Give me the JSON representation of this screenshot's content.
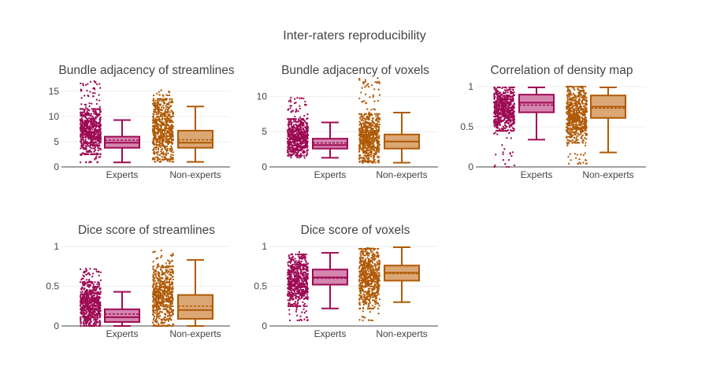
{
  "figure_title": "Inter-raters reproducibility",
  "colors": {
    "experts_dark": "#9e0a55",
    "experts_fill": "#d486ae",
    "nonexperts_dark": "#b05a06",
    "nonexperts_fill": "#dba775",
    "grid": "#eeeeee",
    "axis": "#444444"
  },
  "chart_data": [
    {
      "type": "box",
      "title": "Bundle adjacency of streamlines",
      "categories": [
        "Experts",
        "Non-experts"
      ],
      "ylim": [
        0,
        17.5
      ],
      "yticks": [
        0,
        5,
        10,
        15
      ],
      "boxes": [
        {
          "name": "Experts",
          "min": 0.9,
          "q1": 3.8,
          "median": 4.8,
          "mean": 5.3,
          "q3": 6.0,
          "max": 9.3
        },
        {
          "name": "Non-experts",
          "min": 1.0,
          "q1": 3.8,
          "median": 4.8,
          "mean": 5.4,
          "q3": 7.2,
          "max": 12.0
        }
      ],
      "points": [
        {
          "name": "Experts",
          "min": 0.9,
          "max": 17.0,
          "dense_low": 2.5,
          "dense_high": 11.5
        },
        {
          "name": "Non-experts",
          "min": 1.0,
          "max": 15.2,
          "dense_low": 1.5,
          "dense_high": 13.5
        }
      ]
    },
    {
      "type": "box",
      "title": "Bundle adjacency of voxels",
      "categories": [
        "Experts",
        "Non-experts"
      ],
      "ylim": [
        0,
        12.5
      ],
      "yticks": [
        0,
        5,
        10
      ],
      "boxes": [
        {
          "name": "Experts",
          "min": 1.3,
          "q1": 2.6,
          "median": 3.1,
          "mean": 3.4,
          "q3": 4.0,
          "max": 6.3
        },
        {
          "name": "Non-experts",
          "min": 0.6,
          "q1": 2.6,
          "median": 3.6,
          "mean": 3.6,
          "q3": 4.6,
          "max": 7.7
        }
      ],
      "points": [
        {
          "name": "Experts",
          "min": 1.3,
          "max": 9.8,
          "dense_low": 1.6,
          "dense_high": 6.8
        },
        {
          "name": "Non-experts",
          "min": 0.6,
          "max": 12.6,
          "dense_low": 0.8,
          "dense_high": 7.5
        }
      ]
    },
    {
      "type": "box",
      "title": "Correlation of density map",
      "categories": [
        "Experts",
        "Non-experts"
      ],
      "ylim": [
        0,
        1.0
      ],
      "yticks": [
        0,
        0.5,
        1
      ],
      "boxes": [
        {
          "name": "Experts",
          "min": 0.34,
          "q1": 0.68,
          "median": 0.8,
          "mean": 0.77,
          "q3": 0.9,
          "max": 0.99
        },
        {
          "name": "Non-experts",
          "min": 0.18,
          "q1": 0.61,
          "median": 0.75,
          "mean": 0.73,
          "q3": 0.89,
          "max": 0.99
        }
      ],
      "points": [
        {
          "name": "Experts",
          "min": 0.0,
          "max": 0.99,
          "dense_low": 0.45,
          "dense_high": 0.99
        },
        {
          "name": "Non-experts",
          "min": 0.04,
          "max": 1.0,
          "dense_low": 0.3,
          "dense_high": 1.0
        }
      ]
    },
    {
      "type": "box",
      "title": "Dice score of streamlines",
      "categories": [
        "Experts",
        "Non-experts"
      ],
      "ylim": [
        0,
        1.0
      ],
      "yticks": [
        0,
        0.5,
        1
      ],
      "boxes": [
        {
          "name": "Experts",
          "min": 0.0,
          "q1": 0.05,
          "median": 0.11,
          "mean": 0.15,
          "q3": 0.21,
          "max": 0.43
        },
        {
          "name": "Non-experts",
          "min": 0.0,
          "q1": 0.09,
          "median": 0.2,
          "mean": 0.25,
          "q3": 0.39,
          "max": 0.83
        }
      ],
      "points": [
        {
          "name": "Experts",
          "min": 0.0,
          "max": 0.72,
          "dense_low": 0.0,
          "dense_high": 0.55
        },
        {
          "name": "Non-experts",
          "min": 0.0,
          "max": 0.95,
          "dense_low": 0.0,
          "dense_high": 0.75
        }
      ]
    },
    {
      "type": "box",
      "title": "Dice score of voxels",
      "categories": [
        "Experts",
        "Non-experts"
      ],
      "ylim": [
        0,
        1.0
      ],
      "yticks": [
        0,
        0.5,
        1
      ],
      "boxes": [
        {
          "name": "Experts",
          "min": 0.22,
          "q1": 0.52,
          "median": 0.61,
          "mean": 0.6,
          "q3": 0.71,
          "max": 0.92
        },
        {
          "name": "Non-experts",
          "min": 0.3,
          "q1": 0.57,
          "median": 0.67,
          "mean": 0.66,
          "q3": 0.76,
          "max": 0.99
        }
      ],
      "points": [
        {
          "name": "Experts",
          "min": 0.07,
          "max": 0.93,
          "dense_low": 0.25,
          "dense_high": 0.9
        },
        {
          "name": "Non-experts",
          "min": 0.07,
          "max": 0.98,
          "dense_low": 0.22,
          "dense_high": 0.97
        }
      ]
    }
  ]
}
